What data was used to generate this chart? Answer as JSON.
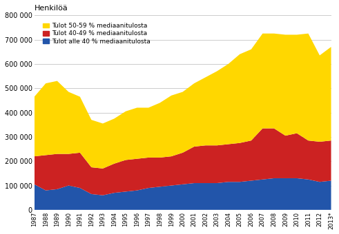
{
  "years": [
    "1987",
    "1988",
    "1989",
    "1990",
    "1991",
    "1992",
    "1993",
    "1994",
    "1995",
    "1996",
    "1997",
    "1998",
    "1999",
    "2000",
    "2001",
    "2002",
    "2003",
    "2004",
    "2005",
    "2006",
    "2007",
    "2008",
    "2009",
    "2010",
    "2011",
    "2012",
    "2013*"
  ],
  "blue": [
    105000,
    80000,
    85000,
    100000,
    90000,
    65000,
    60000,
    70000,
    75000,
    80000,
    90000,
    95000,
    100000,
    105000,
    110000,
    110000,
    110000,
    115000,
    115000,
    120000,
    125000,
    130000,
    130000,
    130000,
    125000,
    115000,
    120000
  ],
  "red": [
    115000,
    145000,
    145000,
    130000,
    145000,
    110000,
    110000,
    120000,
    130000,
    130000,
    125000,
    120000,
    120000,
    130000,
    150000,
    155000,
    155000,
    155000,
    160000,
    165000,
    210000,
    205000,
    175000,
    185000,
    160000,
    165000,
    165000
  ],
  "yellow": [
    245000,
    295000,
    300000,
    255000,
    230000,
    195000,
    185000,
    185000,
    200000,
    210000,
    205000,
    225000,
    250000,
    250000,
    260000,
    280000,
    305000,
    330000,
    365000,
    375000,
    390000,
    390000,
    415000,
    405000,
    440000,
    355000,
    385000
  ],
  "legend_labels": [
    "Tulot 50-59 % mediaanitulosta",
    "Tulot 40-49 % mediaanitulosta",
    "Tulot alle 40 % mediaanitulosta"
  ],
  "colors": [
    "#FFD700",
    "#CC2222",
    "#2255AA"
  ],
  "ylabel": "Henkilöä",
  "ylim": [
    0,
    800000
  ],
  "yticks": [
    0,
    100000,
    200000,
    300000,
    400000,
    500000,
    600000,
    700000,
    800000
  ],
  "background_color": "#ffffff",
  "grid_color": "#cccccc"
}
